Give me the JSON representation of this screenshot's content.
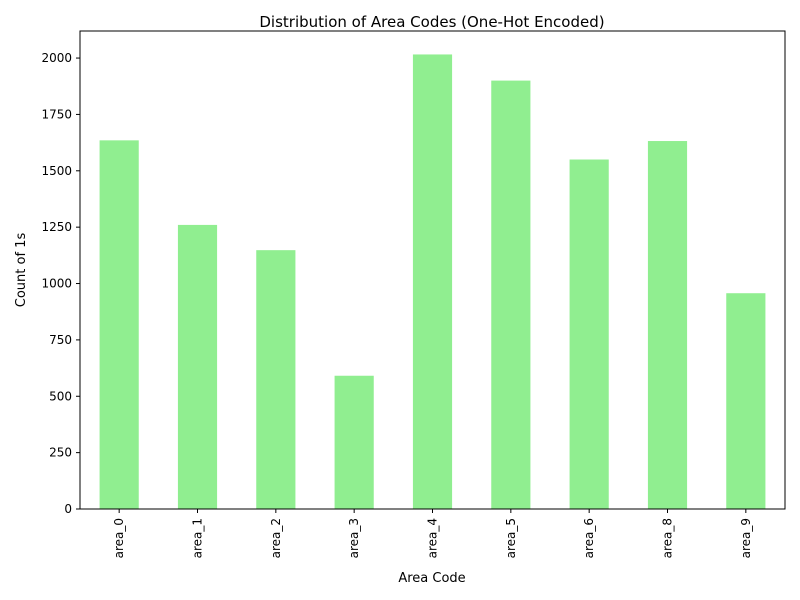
{
  "chart_data": {
    "type": "bar",
    "title": "Distribution of Area Codes (One-Hot Encoded)",
    "xlabel": "Area Code",
    "ylabel": "Count of 1s",
    "categories": [
      "area_0",
      "area_1",
      "area_2",
      "area_3",
      "area_4",
      "area_5",
      "area_6",
      "area_8",
      "area_9"
    ],
    "values": [
      1635,
      1260,
      1148,
      591,
      2016,
      1900,
      1550,
      1632,
      957
    ],
    "ylim": [
      0,
      2120
    ],
    "yticks": [
      0,
      250,
      500,
      750,
      1000,
      1250,
      1500,
      1750,
      2000
    ],
    "grid": false,
    "bar_color": "#90ee90"
  }
}
